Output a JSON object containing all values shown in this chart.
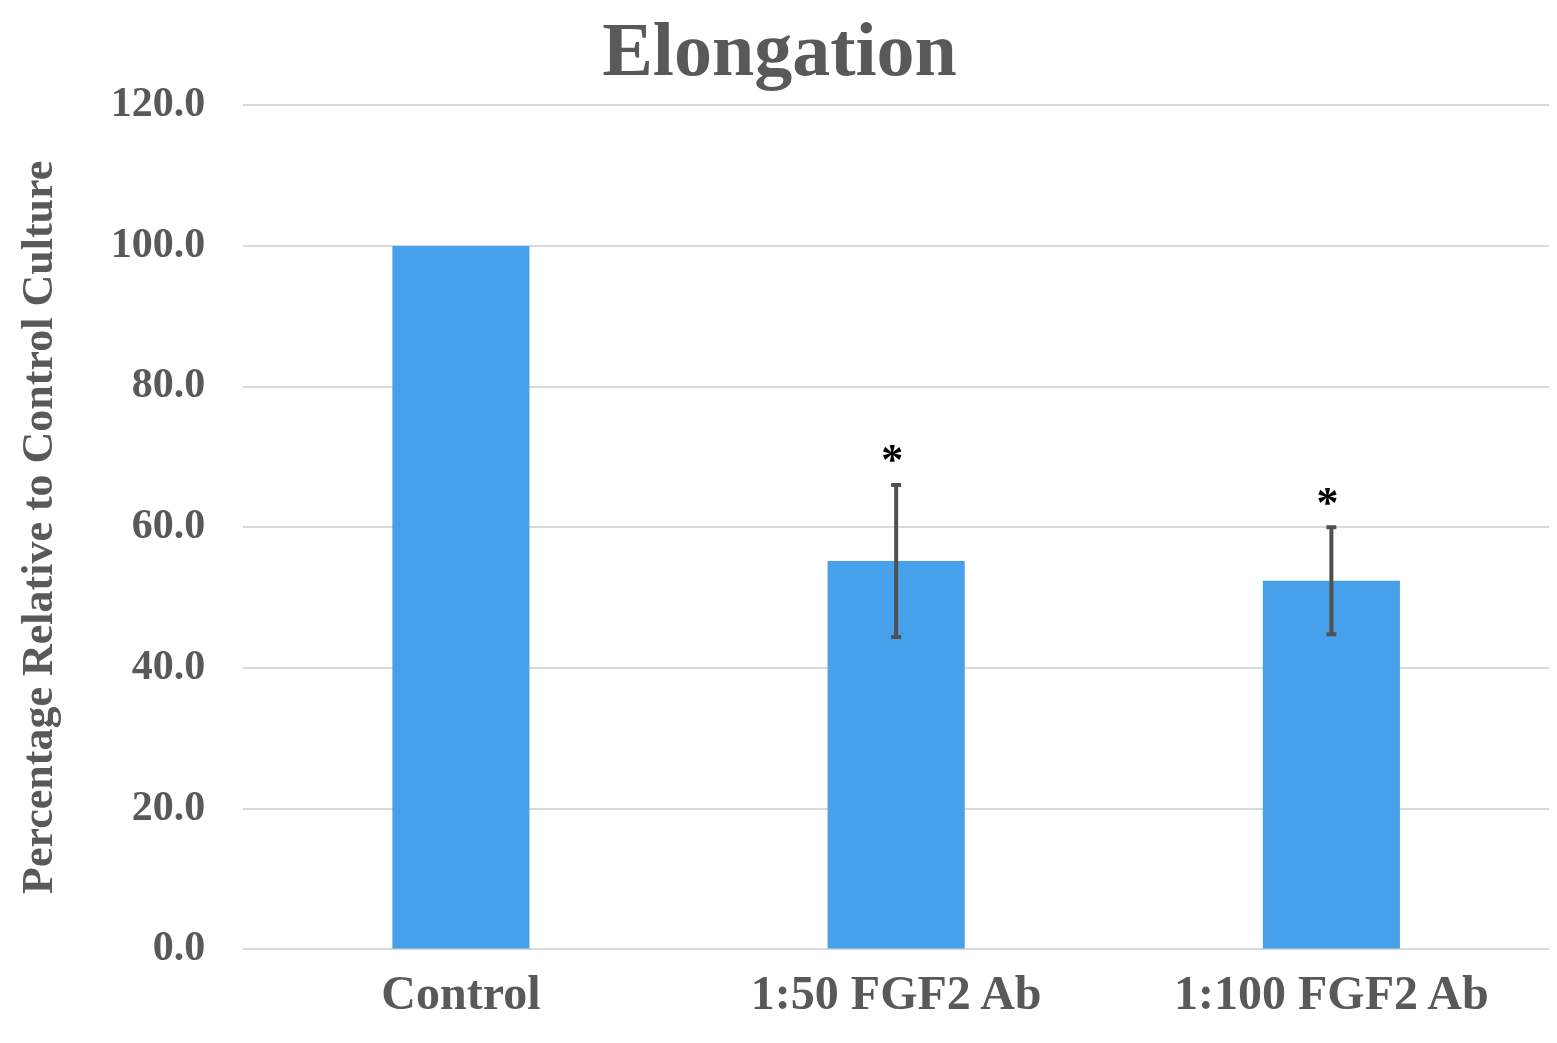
{
  "chart_data": {
    "type": "bar",
    "title": "Elongation",
    "ylabel": "Percentage Relative to Control Culture",
    "categories": [
      "Control",
      "1:50 FGF2 Ab",
      "1:100 FGF2 Ab"
    ],
    "values": [
      100,
      55.2,
      52.4
    ],
    "color": "#47a0ea",
    "errors": [
      null,
      [
        44.4,
        66.0
      ],
      [
        44.8,
        60.0
      ]
    ],
    "ylim": [
      0,
      120
    ],
    "yticks": [
      {
        "value": 0,
        "label": "0.0"
      },
      {
        "value": 20,
        "label": "20.0"
      },
      {
        "value": 40,
        "label": "40.0"
      },
      {
        "value": 60,
        "label": "60.0"
      },
      {
        "value": 80,
        "label": "80.0"
      },
      {
        "value": 100,
        "label": "100.0"
      },
      {
        "value": 120,
        "label": "120.0"
      }
    ],
    "grid": "y",
    "legend": false,
    "annotations": [
      "*",
      "*"
    ]
  }
}
